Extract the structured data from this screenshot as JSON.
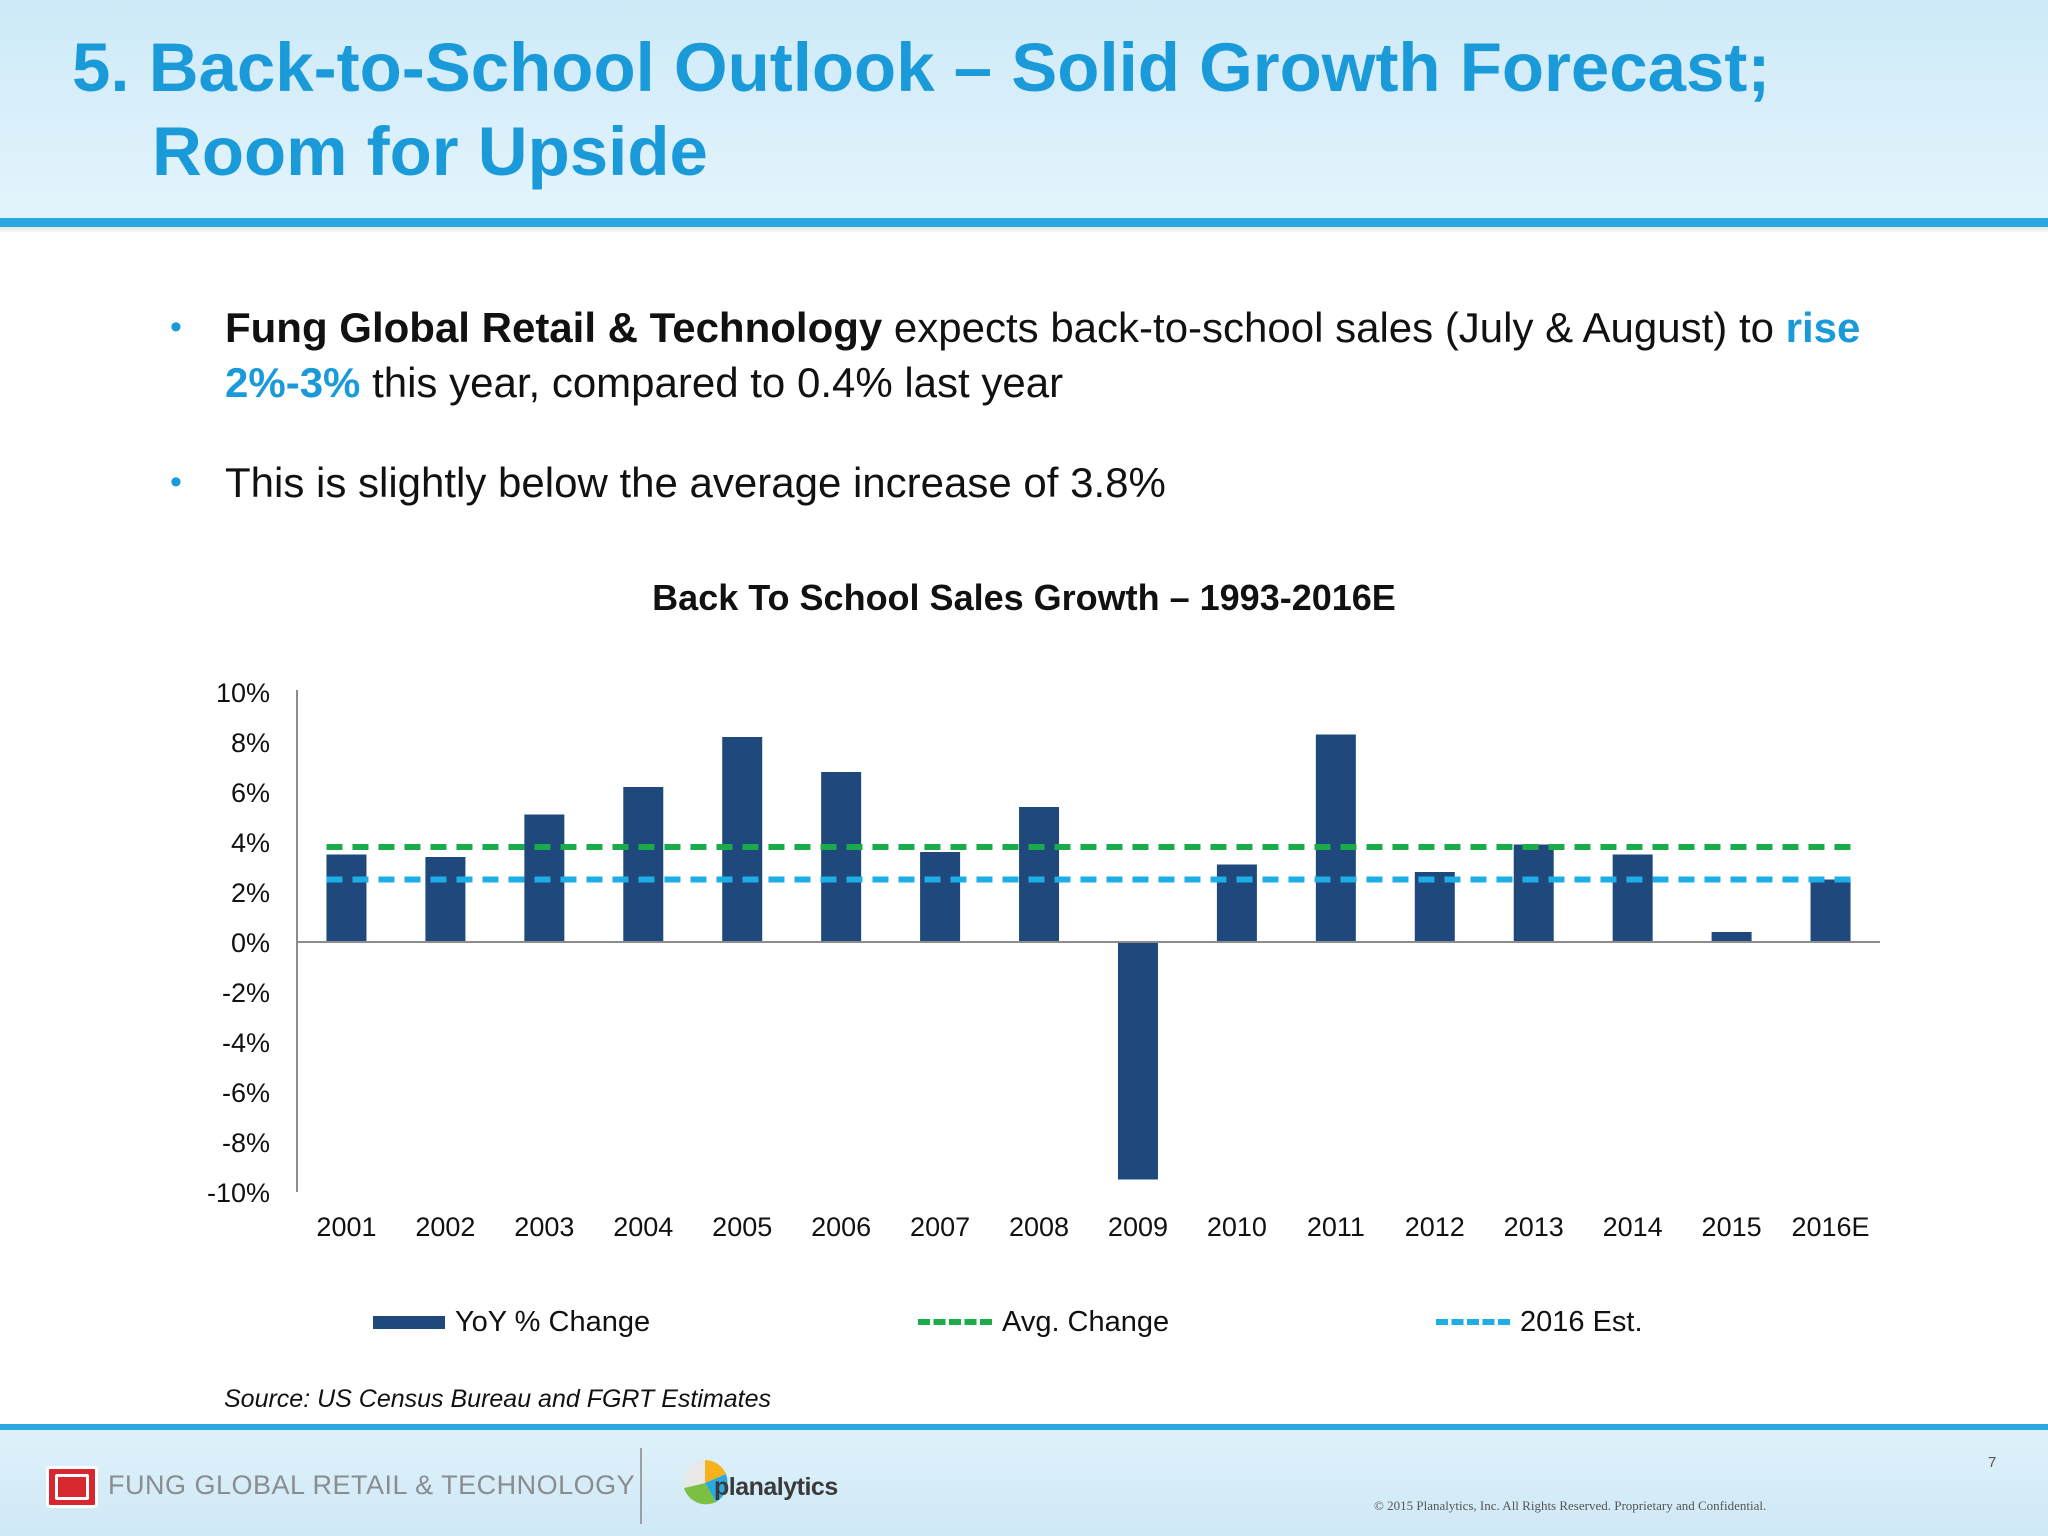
{
  "slide": {
    "title_line1": "5. Back-to-School Outlook – Solid Growth Forecast;",
    "title_line2": "Room for Upside",
    "bullets": [
      {
        "bold": "Fung Global Retail & Technology",
        "text1": " expects back-to-school sales (July & August) to ",
        "accent": "rise 2%-3%",
        "text2": " this year, compared to 0.4% last year"
      },
      {
        "text": "This is slightly below the average increase of 3.8%"
      }
    ],
    "source": "Source: US Census Bureau and FGRT Estimates"
  },
  "chart_data": {
    "type": "bar",
    "title": "Back To School Sales Growth – 1993-2016E",
    "categories": [
      "2001",
      "2002",
      "2003",
      "2004",
      "2005",
      "2006",
      "2007",
      "2008",
      "2009",
      "2010",
      "2011",
      "2012",
      "2013",
      "2014",
      "2015",
      "2016E"
    ],
    "series": [
      {
        "name": "YoY % Change",
        "type": "bar",
        "color": "#1f497d",
        "values": [
          3.5,
          3.4,
          5.1,
          6.2,
          8.2,
          6.8,
          3.6,
          5.4,
          -9.5,
          3.1,
          8.3,
          2.8,
          3.9,
          3.5,
          0.4,
          2.5
        ]
      },
      {
        "name": "Avg. Change",
        "type": "line",
        "style": "dashed",
        "color": "#1aab4b",
        "value": 3.8
      },
      {
        "name": "2016 Est.",
        "type": "line",
        "style": "dashed",
        "color": "#1eaee6",
        "value": 2.5
      }
    ],
    "yticks": [
      "10%",
      "8%",
      "6%",
      "4%",
      "2%",
      "0%",
      "-2%",
      "-4%",
      "-6%",
      "-8%",
      "-10%"
    ],
    "ylim": [
      -10,
      10
    ],
    "ytick_step": 2,
    "xlabel": "",
    "ylabel": "",
    "grid": false,
    "legend": "bottom"
  },
  "legend": {
    "bar_label": "YoY % Change",
    "avg_label": "Avg. Change",
    "est_label": "2016 Est."
  },
  "footer": {
    "company": "FUNG GLOBAL RETAIL & TECHNOLOGY",
    "partner": "planalytics",
    "page_number": "7",
    "copyright": "© 2015 Planalytics, Inc. All Rights Reserved. Proprietary and Confidential."
  },
  "colors": {
    "title": "#1a9ad9",
    "accent": "#1a9ad9",
    "bar": "#1f497d",
    "avg_line": "#1aab4b",
    "est_line": "#1eaee6",
    "rule": "#29a9e1"
  }
}
